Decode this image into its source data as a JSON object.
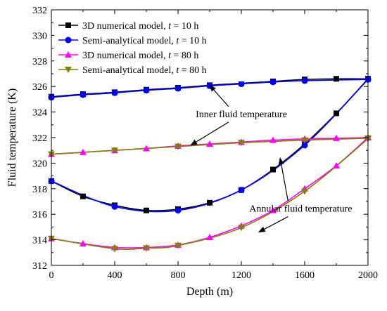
{
  "chart_data": {
    "type": "line",
    "xlabel": "Depth (m)",
    "ylabel": "Fluid temperature (K)",
    "xlim": [
      0,
      2000
    ],
    "ylim": [
      312,
      332
    ],
    "xticks": [
      0,
      400,
      800,
      1200,
      1600,
      2000
    ],
    "yticks": [
      312,
      314,
      316,
      318,
      320,
      322,
      324,
      326,
      328,
      330,
      332
    ],
    "grid": false,
    "legend_position": "top-left",
    "series": [
      {
        "name": "3D numerical model, t = 10 h",
        "legend_prefix": "3D numerical model, ",
        "legend_time": "10 h",
        "color": "#000000",
        "marker": "square",
        "profiles": [
          {
            "x": [
              0,
              200,
              400,
              600,
              800,
              1000,
              1200,
              1400,
              1600,
              1800,
              2000
            ],
            "y": [
              325.2,
              325.4,
              325.55,
              325.75,
              325.9,
              326.1,
              326.25,
              326.4,
              326.55,
              326.6,
              326.6
            ]
          },
          {
            "x": [
              0,
              200,
              400,
              600,
              800,
              1000,
              1200,
              1400,
              1600,
              1800,
              2000
            ],
            "y": [
              318.6,
              317.4,
              316.7,
              316.3,
              316.4,
              316.9,
              317.9,
              319.5,
              321.5,
              323.9,
              326.6
            ]
          }
        ]
      },
      {
        "name": "Semi-analytical model, t = 10 h",
        "legend_prefix": "Semi-analytical model, ",
        "legend_time": "10 h",
        "color": "#0000ff",
        "marker": "circle",
        "profiles": [
          {
            "x": [
              0,
              200,
              400,
              600,
              800,
              1000,
              1200,
              1400,
              1600,
              2000
            ],
            "y": [
              325.15,
              325.35,
              325.5,
              325.7,
              325.85,
              326.05,
              326.2,
              326.35,
              326.45,
              326.55
            ]
          },
          {
            "x": [
              0,
              400,
              800,
              1200,
              1600,
              2000
            ],
            "y": [
              318.6,
              316.6,
              316.3,
              317.9,
              321.4,
              326.55
            ]
          }
        ]
      },
      {
        "name": "3D numerical model, t = 80 h",
        "legend_prefix": "3D numerical model, ",
        "legend_time": "80 h",
        "color": "#ff00ff",
        "marker": "triangle-up",
        "profiles": [
          {
            "x": [
              0,
              200,
              400,
              600,
              800,
              1000,
              1200,
              1400,
              1600,
              1800,
              2000
            ],
            "y": [
              320.7,
              320.85,
              321.0,
              321.15,
              321.35,
              321.5,
              321.65,
              321.8,
              321.9,
              321.95,
              322.0
            ]
          },
          {
            "x": [
              0,
              200,
              400,
              600,
              800,
              1000,
              1200,
              1400,
              1600,
              1800,
              2000
            ],
            "y": [
              314.1,
              313.7,
              313.4,
              313.4,
              313.6,
              314.2,
              315.1,
              316.3,
              318.0,
              319.8,
              322.0
            ]
          }
        ]
      },
      {
        "name": "Semi-analytical model, t = 80 h",
        "legend_prefix": "Semi-analytical model, ",
        "legend_time": "80 h",
        "color": "#808000",
        "marker": "triangle-down",
        "profiles": [
          {
            "x": [
              0,
              400,
              800,
              1200,
              1600,
              2000
            ],
            "y": [
              320.7,
              321.0,
              321.3,
              321.6,
              321.8,
              321.95
            ]
          },
          {
            "x": [
              0,
              400,
              600,
              800,
              1200,
              1600,
              2000
            ],
            "y": [
              314.1,
              313.3,
              313.35,
              313.55,
              314.95,
              317.8,
              321.9
            ]
          }
        ]
      }
    ],
    "annotations": [
      {
        "text": "Inner fluid temperature",
        "text_at": [
          1200,
          323.6
        ],
        "arrows_to": [
          [
            1000,
            326.1
          ],
          [
            880,
            321.4
          ]
        ]
      },
      {
        "text": "Annular fluid temperature",
        "text_at": [
          1575,
          316.2
        ],
        "arrows_to": [
          [
            1445,
            320.4
          ],
          [
            1310,
            314.6
          ]
        ]
      }
    ]
  }
}
